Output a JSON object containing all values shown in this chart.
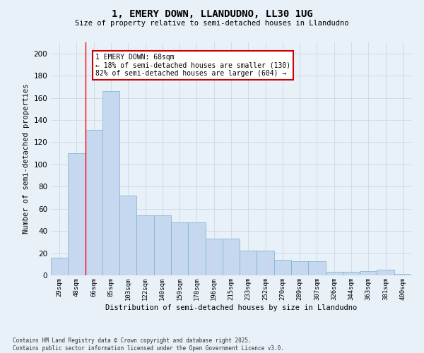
{
  "title": "1, EMERY DOWN, LLANDUDNO, LL30 1UG",
  "subtitle": "Size of property relative to semi-detached houses in Llandudno",
  "xlabel": "Distribution of semi-detached houses by size in Llandudno",
  "ylabel": "Number of semi-detached properties",
  "categories": [
    "29sqm",
    "48sqm",
    "66sqm",
    "85sqm",
    "103sqm",
    "122sqm",
    "140sqm",
    "159sqm",
    "178sqm",
    "196sqm",
    "215sqm",
    "233sqm",
    "252sqm",
    "270sqm",
    "289sqm",
    "307sqm",
    "326sqm",
    "344sqm",
    "363sqm",
    "381sqm",
    "400sqm"
  ],
  "values": [
    16,
    110,
    131,
    166,
    72,
    54,
    54,
    48,
    48,
    33,
    33,
    22,
    22,
    14,
    13,
    13,
    3,
    3,
    4,
    5,
    1
  ],
  "bar_color": "#c5d8f0",
  "bar_edge_color": "#7bafd4",
  "grid_color": "#c8d8e8",
  "background_color": "#e8f0f8",
  "red_line_x": 1.5,
  "annotation_text": "1 EMERY DOWN: 68sqm\n← 18% of semi-detached houses are smaller (130)\n82% of semi-detached houses are larger (604) →",
  "annotation_box_color": "#ffffff",
  "annotation_box_edge": "#cc0000",
  "footnote": "Contains HM Land Registry data © Crown copyright and database right 2025.\nContains public sector information licensed under the Open Government Licence v3.0.",
  "ylim": [
    0,
    210
  ],
  "yticks": [
    0,
    20,
    40,
    60,
    80,
    100,
    120,
    140,
    160,
    180,
    200
  ]
}
